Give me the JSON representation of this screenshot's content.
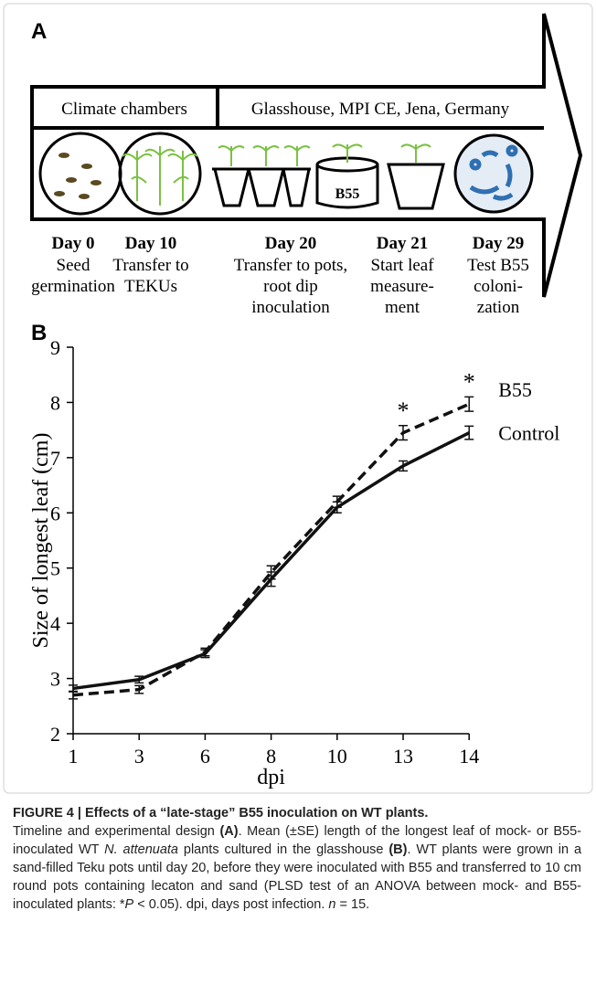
{
  "panel_a": {
    "label": "A",
    "phases": [
      "Climate chambers",
      "Glasshouse, MPI CE, Jena, Germany"
    ],
    "pot_label": "B55",
    "days": [
      {
        "day": "Day 0",
        "desc": [
          "Seed",
          "germination"
        ]
      },
      {
        "day": "Day 10",
        "desc": [
          "Transfer to",
          "TEKUs"
        ]
      },
      {
        "day": "Day 20",
        "desc": [
          "Transfer to pots,",
          "root dip",
          "inoculation"
        ]
      },
      {
        "day": "Day 21",
        "desc": [
          "Start leaf",
          "measure-",
          "ment"
        ]
      },
      {
        "day": "Day 29",
        "desc": [
          "Test B55",
          "coloni-",
          "zation"
        ]
      }
    ]
  },
  "chart_data": {
    "type": "line",
    "panel_label": "B",
    "x_label": "dpi",
    "y_label": "Size of longest leaf (cm)",
    "categories": [
      "1",
      "3",
      "6",
      "8",
      "10",
      "13",
      "14"
    ],
    "series": [
      {
        "name": "B55",
        "color": "#111111",
        "dashed": true,
        "values": [
          2.7,
          2.8,
          3.48,
          4.92,
          6.2,
          7.45,
          7.97
        ],
        "errors": [
          0.07,
          0.07,
          0.07,
          0.12,
          0.1,
          0.13,
          0.13
        ]
      },
      {
        "name": "Control",
        "color": "#111111",
        "dashed": false,
        "values": [
          2.82,
          2.98,
          3.45,
          4.8,
          6.1,
          6.85,
          7.45
        ],
        "errors": [
          0.06,
          0.06,
          0.07,
          0.13,
          0.1,
          0.09,
          0.12
        ]
      }
    ],
    "annotations": [
      {
        "text": "*",
        "x": "13"
      },
      {
        "text": "*",
        "x": "14"
      }
    ],
    "ylim": [
      2,
      9
    ],
    "yticks": [
      2,
      3,
      4,
      5,
      6,
      7,
      8,
      9
    ],
    "grid": false
  },
  "caption": {
    "title": "FIGURE 4 | Effects of a “late-stage” B55 inoculation on WT plants.",
    "body": [
      "Timeline and experimental design ",
      "(A)",
      ". Mean (±SE) length of the longest leaf of mock- or B55-inoculated WT ",
      "N. attenuata",
      " plants cultured in the glasshouse ",
      "(B)",
      ". WT plants were grown in a sand-filled Teku pots until day 20, before they were inoculated with B55 and transferred to 10 cm round pots containing lecaton and sand (PLSD test of an ANOVA between mock- and B55-inoculated plants: *",
      "P",
      " < 0.05). dpi, days post infection. ",
      "n",
      " = 15."
    ]
  }
}
